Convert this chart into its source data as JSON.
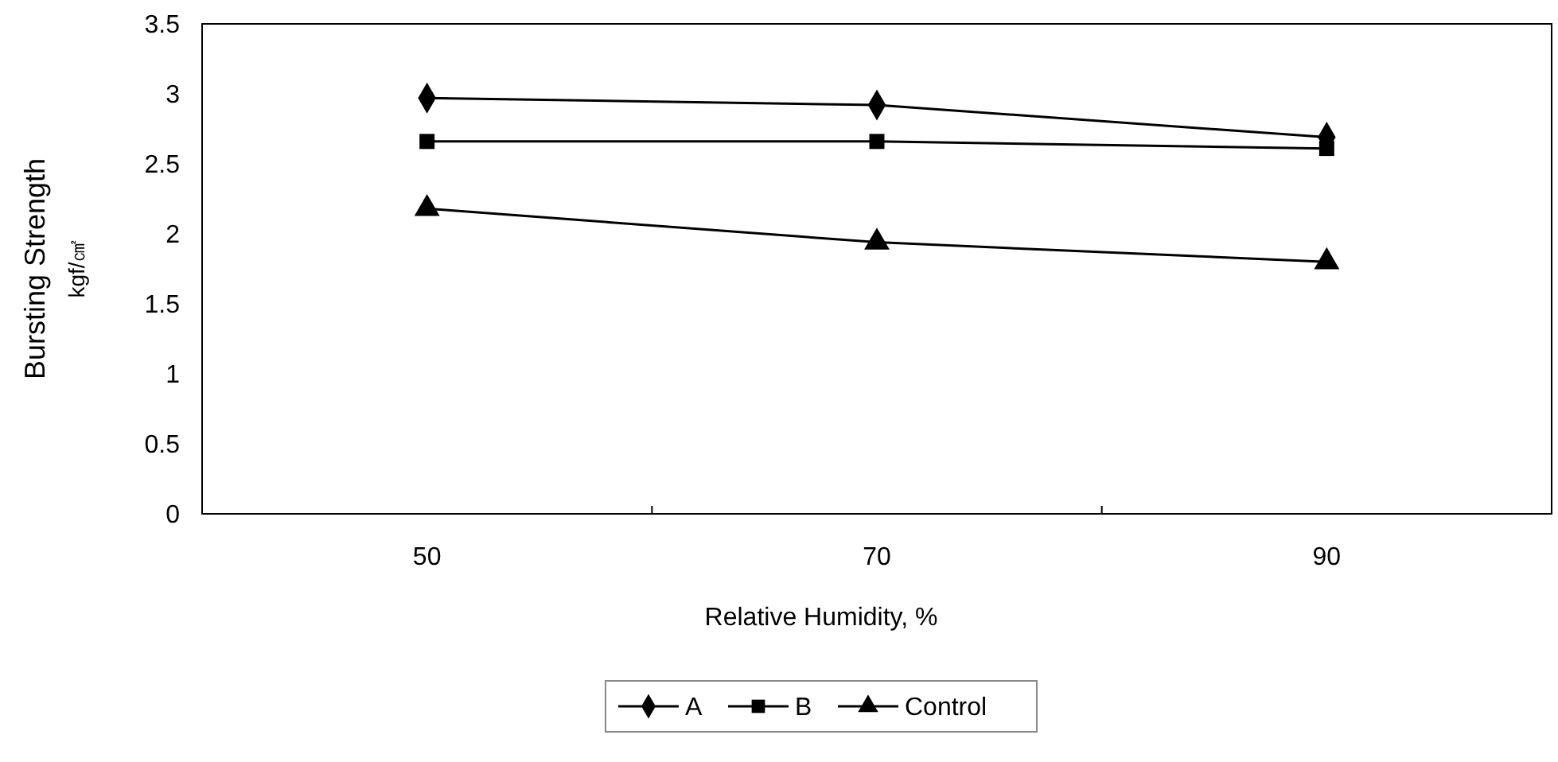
{
  "chart_data": {
    "type": "line",
    "xlabel": "Relative Humidity, %",
    "ylabel": "Bursting Strength\nkgf/㎠",
    "categories": [
      "50",
      "70",
      "90"
    ],
    "series": [
      {
        "name": "A",
        "color": "#000000",
        "marker": "diamond",
        "values": [
          2.97,
          2.92,
          2.69
        ]
      },
      {
        "name": "B",
        "color": "#000000",
        "marker": "square",
        "values": [
          2.66,
          2.66,
          2.61
        ]
      },
      {
        "name": "Control",
        "color": "#000000",
        "marker": "triangle",
        "values": [
          2.18,
          1.94,
          1.8
        ]
      }
    ],
    "ylim": [
      0,
      3.5
    ],
    "yticks": [
      0,
      0.5,
      1,
      1.5,
      2,
      2.5,
      3,
      3.5
    ],
    "legend": "bottom",
    "grid": false,
    "line_style": "solid"
  }
}
